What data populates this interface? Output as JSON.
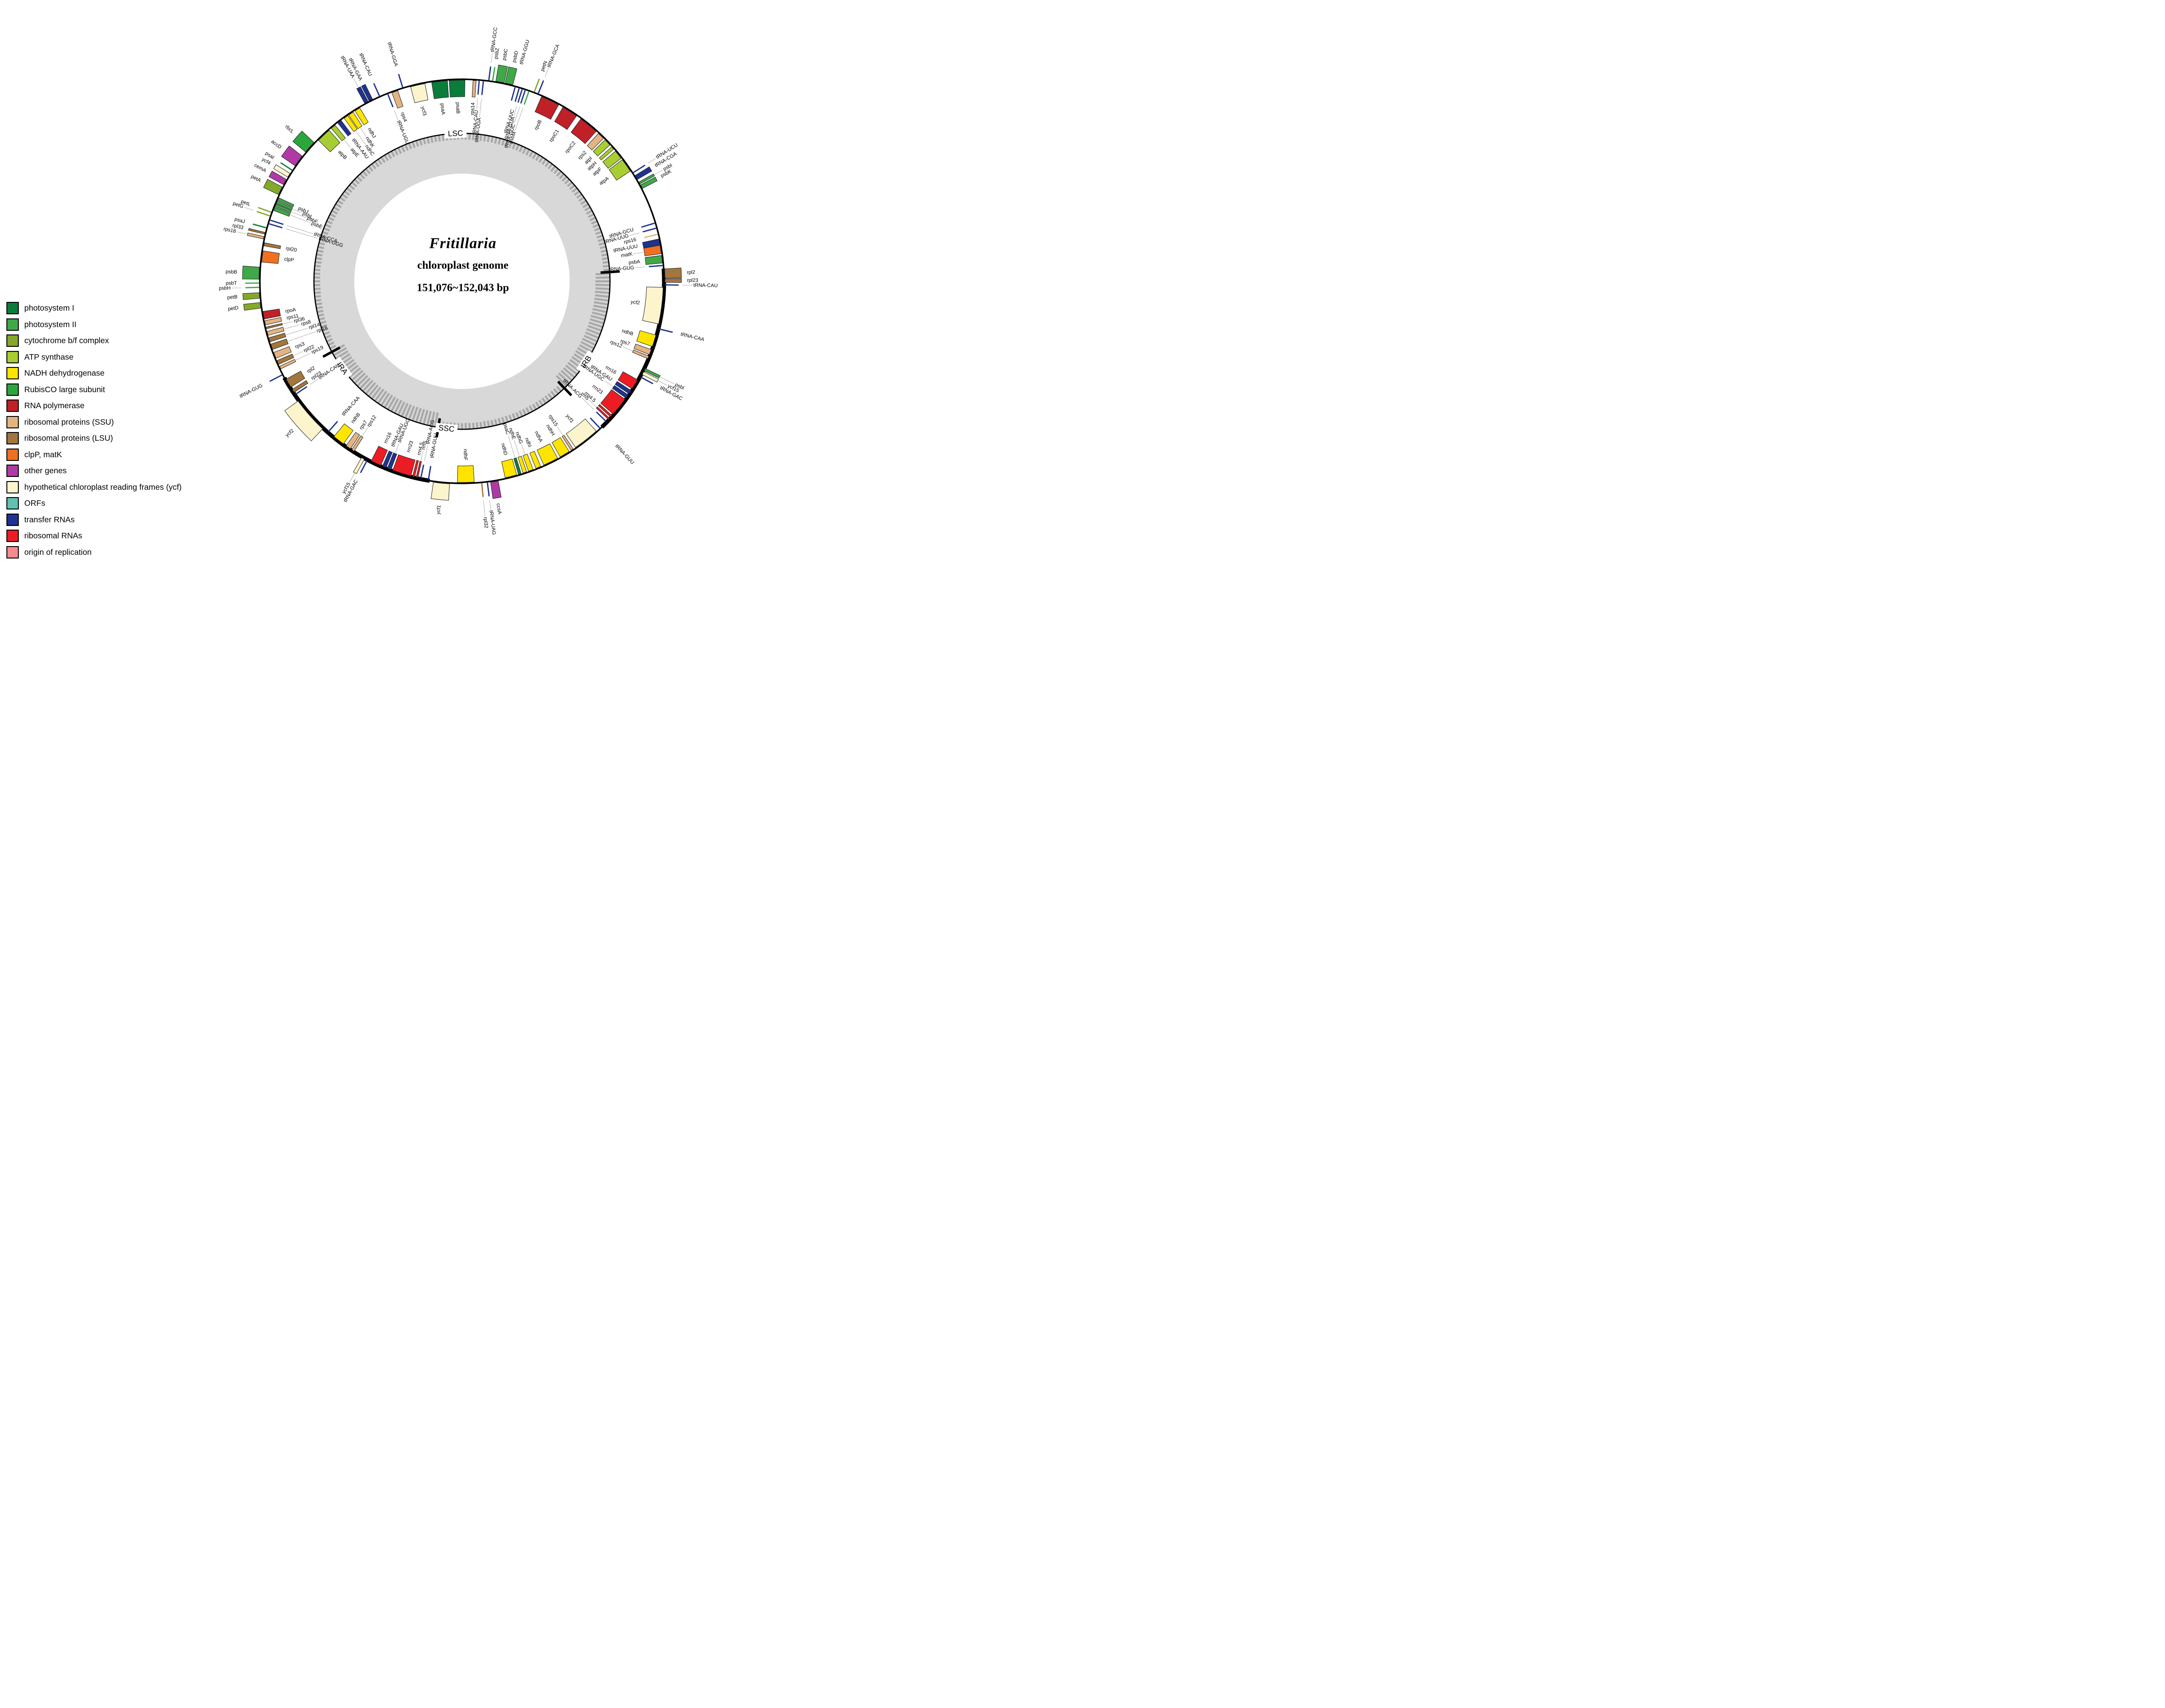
{
  "figure": {
    "type": "circular-genome-map",
    "title": "Fritillaria",
    "subtitle": "chloroplast genome",
    "size_label": "151,076~152,043 bp"
  },
  "colors": {
    "psi": "#0a7d3b",
    "psii": "#3fa947",
    "cyt": "#84a82a",
    "atp": "#a8cd32",
    "ndh": "#ffe400",
    "rbc": "#2ca53c",
    "rpo": "#c02127",
    "ssu": "#e3b482",
    "lsu": "#a3763e",
    "clp": "#f07022",
    "oth": "#af3aa5",
    "ycf": "#fbf4cd",
    "orf": "#63c1b0",
    "trn": "#1e3390",
    "rrn": "#ec1c24",
    "ori": "#f58b8d"
  },
  "legend": [
    {
      "key": "psi",
      "label": "photosystem I"
    },
    {
      "key": "psii",
      "label": "photosystem II"
    },
    {
      "key": "cyt",
      "label": "cytochrome b/f complex"
    },
    {
      "key": "atp",
      "label": "ATP synthase"
    },
    {
      "key": "ndh",
      "label": "NADH dehydrogenase"
    },
    {
      "key": "rbc",
      "label": "RubisCO large subunit"
    },
    {
      "key": "rpo",
      "label": "RNA polymerase"
    },
    {
      "key": "ssu",
      "label": "ribosomal proteins (SSU)"
    },
    {
      "key": "lsu",
      "label": "ribosomal proteins (LSU)"
    },
    {
      "key": "clp",
      "label": "clpP, matK"
    },
    {
      "key": "oth",
      "label": "other genes"
    },
    {
      "key": "ycf",
      "label": "hypothetical chloroplast reading frames (ycf)"
    },
    {
      "key": "orf",
      "label": "ORFs"
    },
    {
      "key": "trn",
      "label": "transfer RNAs"
    },
    {
      "key": "rrn",
      "label": "ribosomal RNAs"
    },
    {
      "key": "ori",
      "label": "origin of replication"
    }
  ],
  "regions": {
    "labels": [
      {
        "name": "LSC",
        "t": 357.5
      },
      {
        "name": "IRB",
        "t": 123
      },
      {
        "name": "SSC",
        "t": 186
      },
      {
        "name": "IRA",
        "t": 234
      }
    ],
    "junction_ticks": [
      86.4,
      136.2,
      189.2,
      241.5
    ],
    "ir_arcs": [
      [
        86.4,
        136.2
      ],
      [
        189.2,
        241.5
      ]
    ]
  },
  "genes": [
    {
      "n": "psaA",
      "t": 353.6,
      "w": 4.5,
      "s": "in",
      "c": "psi"
    },
    {
      "n": "psaB",
      "t": 358.6,
      "w": 4.5,
      "s": "in",
      "c": "psi"
    },
    {
      "n": "rps14",
      "t": 3.6,
      "w": 0.9,
      "s": "in",
      "c": "ssu",
      "lr": 0
    },
    {
      "n": "tRNA-CAU",
      "t": 4.9,
      "w": 0,
      "s": "in",
      "c": "trn",
      "lr": 16
    },
    {
      "n": "tRNA-UGA",
      "t": 6.1,
      "w": 0,
      "s": "in",
      "c": "trn",
      "lr": 32
    },
    {
      "n": "tRNA-GCC",
      "t": 7.6,
      "w": 0,
      "s": "out",
      "c": "trn",
      "lr": 14
    },
    {
      "n": "psbZ",
      "t": 8.7,
      "w": 0,
      "s": "out",
      "c": "psii",
      "lr": 0
    },
    {
      "n": "psbC",
      "t": 10.8,
      "w": 2.4,
      "s": "out",
      "c": "psii"
    },
    {
      "n": "psbD",
      "t": 13.4,
      "w": 2.2,
      "s": "out",
      "c": "psii"
    },
    {
      "n": "tRNA-GGU",
      "t": 15.3,
      "w": 0,
      "s": "in",
      "c": "trn",
      "l": "out"
    },
    {
      "n": "tRNA-UUC",
      "t": 16.5,
      "w": 0,
      "s": "in",
      "c": "trn",
      "lr": 0
    },
    {
      "n": "tRNA-GUA",
      "t": 17.4,
      "w": 0,
      "s": "in",
      "c": "trn",
      "lr": 15
    },
    {
      "n": "tRNA-GUC",
      "t": 18.3,
      "w": 0,
      "s": "in",
      "c": "trn",
      "lr": 30
    },
    {
      "n": "psbM",
      "t": 19.4,
      "w": 0,
      "s": "in",
      "c": "psii",
      "lr": 45
    },
    {
      "n": "petN",
      "t": 20.9,
      "w": 0,
      "s": "out",
      "c": "cyt",
      "lr": 0
    },
    {
      "n": "tRNA-GCA",
      "t": 22.1,
      "w": 0,
      "s": "out",
      "c": "trn",
      "lr": 13
    },
    {
      "n": "rpoB",
      "t": 26,
      "w": 5.4,
      "s": "in",
      "c": "rpo"
    },
    {
      "n": "rpoC1",
      "t": 32.4,
      "w": 4.6,
      "s": "in",
      "c": "rpo"
    },
    {
      "n": "rpoC2",
      "t": 39,
      "w": 5.6,
      "s": "in",
      "c": "rpo"
    },
    {
      "n": "rps2",
      "t": 43.7,
      "w": 2,
      "s": "in",
      "c": "ssu"
    },
    {
      "n": "atpI",
      "t": 46.3,
      "w": 2,
      "s": "in",
      "c": "atp"
    },
    {
      "n": "atpH",
      "t": 48.5,
      "w": 0.9,
      "s": "in",
      "c": "atp"
    },
    {
      "n": "atpF",
      "t": 51,
      "w": 2.6,
      "s": "in",
      "c": "atp"
    },
    {
      "n": "atpA",
      "t": 54.8,
      "w": 4,
      "s": "in",
      "c": "atp"
    },
    {
      "n": "tRNA-UCU",
      "t": 57.6,
      "w": 0,
      "s": "out",
      "c": "trn",
      "lr": 12
    },
    {
      "n": "tRNA-CGA",
      "t": 59.2,
      "w": 1.3,
      "s": "out",
      "c": "trn",
      "lr": 0
    },
    {
      "n": "psbI",
      "t": 61,
      "w": 0.6,
      "s": "out",
      "c": "psii",
      "lr": 12
    },
    {
      "n": "psbK",
      "t": 62.2,
      "w": 1.1,
      "s": "out",
      "c": "psii",
      "lr": 0
    },
    {
      "n": "tRNA-GCU",
      "t": 73.2,
      "w": 0,
      "s": "in",
      "c": "trn",
      "lr": 0
    },
    {
      "n": "tRNA-UUG",
      "t": 74.7,
      "w": 0,
      "s": "in",
      "c": "trn",
      "lr": 14
    },
    {
      "n": "rps16",
      "t": 76.5,
      "w": 0,
      "s": "in",
      "c": "ssu",
      "lr": 0
    },
    {
      "n": "tRNA-UUU",
      "t": 78.7,
      "w": 1.7,
      "s": "in",
      "c": "trn",
      "lr": 0
    },
    {
      "n": "matK",
      "t": 80.9,
      "w": 2.4,
      "s": "in",
      "c": "clp",
      "lr": 14
    },
    {
      "n": "psbA",
      "t": 83.7,
      "w": 2.2,
      "s": "in",
      "c": "psii",
      "lr": 0
    },
    {
      "n": "tRNA-GUG",
      "t": 85.5,
      "w": 0,
      "s": "in",
      "c": "trn",
      "lr": 14
    },
    {
      "n": "rpl2",
      "t": 87.8,
      "w": 2.6,
      "s": "out",
      "c": "lsu",
      "lr": 0
    },
    {
      "n": "rpl23",
      "t": 89.8,
      "w": 1,
      "s": "out",
      "c": "lsu",
      "lr": 0
    },
    {
      "n": "tRNA-CAU",
      "t": 91,
      "w": 0,
      "s": "out",
      "c": "trn",
      "lr": 14
    },
    {
      "n": "ycf2",
      "t": 97,
      "w": 10.5,
      "s": "in",
      "c": "ycf"
    },
    {
      "n": "tRNA-CAA",
      "t": 103.6,
      "w": 0,
      "s": "out",
      "c": "trn"
    },
    {
      "n": "ndhB",
      "t": 107.2,
      "w": 3.4,
      "s": "in",
      "c": "ndh"
    },
    {
      "n": "rps7",
      "t": 110.6,
      "w": 1.5,
      "s": "in",
      "c": "ssu",
      "lr": 0
    },
    {
      "n": "rps12",
      "t": 112.2,
      "w": 0.8,
      "s": "in",
      "c": "ssu",
      "lr": 14
    },
    {
      "n": "psbI",
      "t": 115.8,
      "w": 0.7,
      "s": "out",
      "c": "psii",
      "lr": 26
    },
    {
      "n": "ycf15",
      "t": 116.9,
      "w": 0.9,
      "s": "out",
      "c": "ycf",
      "lr": 13
    },
    {
      "n": "tRNA-GAC",
      "t": 118.2,
      "w": 0,
      "s": "out",
      "c": "trn",
      "lr": 0
    },
    {
      "n": "rrn16",
      "t": 120.8,
      "w": 3,
      "s": "in",
      "c": "rrn"
    },
    {
      "n": "tRNA-GAU",
      "t": 123.4,
      "w": 1.1,
      "s": "in",
      "c": "trn",
      "lr": 0
    },
    {
      "n": "tRNA-UGC",
      "t": 124.9,
      "w": 1.1,
      "s": "in",
      "c": "trn",
      "lr": 14
    },
    {
      "n": "rrn23",
      "t": 128.6,
      "w": 5.4,
      "s": "in",
      "c": "rrn"
    },
    {
      "n": "rrn4.5",
      "t": 132.1,
      "w": 0.6,
      "s": "in",
      "c": "rrn",
      "lr": 0
    },
    {
      "n": "rrn5",
      "t": 133.1,
      "w": 0.5,
      "s": "in",
      "c": "rrn",
      "lr": 14
    },
    {
      "n": "tRNA-ACG",
      "t": 134.2,
      "w": 0,
      "s": "in",
      "c": "trn",
      "lr": 28
    },
    {
      "n": "tRNA-GUU",
      "t": 136.8,
      "w": 0,
      "s": "in",
      "c": "trn",
      "l": "out"
    },
    {
      "n": "ycf1",
      "t": 141.9,
      "w": 7.5,
      "s": "in",
      "c": "ycf"
    },
    {
      "n": "rps15",
      "t": 146.8,
      "w": 0.7,
      "s": "in",
      "c": "ssu",
      "lr": 14
    },
    {
      "n": "ndhH",
      "t": 149.3,
      "w": 3,
      "s": "in",
      "c": "ndh",
      "lr": 0
    },
    {
      "n": "ndhA",
      "t": 153.8,
      "w": 4.4,
      "s": "in",
      "c": "ndh"
    },
    {
      "n": "ndhI",
      "t": 157.7,
      "w": 1.5,
      "s": "in",
      "c": "ndh",
      "lr": 0
    },
    {
      "n": "ndhG",
      "t": 160,
      "w": 1.4,
      "s": "in",
      "c": "ndh",
      "lr": 14
    },
    {
      "n": "ndhE",
      "t": 161.8,
      "w": 1.1,
      "s": "in",
      "c": "ndh",
      "lr": 28
    },
    {
      "n": "psaC",
      "t": 163.3,
      "w": 0.8,
      "s": "in",
      "c": "psi",
      "lr": 42
    },
    {
      "n": "ndhD",
      "t": 165.9,
      "w": 3.4,
      "s": "in",
      "c": "ndh",
      "lr": 0
    },
    {
      "n": "ccsA",
      "t": 170.8,
      "w": 2.2,
      "s": "out",
      "c": "oth",
      "lr": 0
    },
    {
      "n": "tRNA-UAG",
      "t": 172.8,
      "w": 0,
      "s": "out",
      "c": "trn",
      "lr": 13
    },
    {
      "n": "rpl32",
      "t": 174.4,
      "w": 0,
      "s": "out",
      "c": "lsu",
      "lr": 26
    },
    {
      "n": "ndhF",
      "t": 178.9,
      "w": 4.8,
      "s": "in",
      "c": "ndh"
    },
    {
      "n": "ycf1",
      "t": 185.8,
      "w": 4.6,
      "s": "out",
      "c": "ycf"
    },
    {
      "n": "tRNA-GUU",
      "t": 189.6,
      "w": 0,
      "s": "in",
      "c": "trn"
    },
    {
      "n": "tRNA-ACG",
      "t": 191.8,
      "w": 0,
      "s": "in",
      "c": "trn",
      "lr": 28
    },
    {
      "n": "rrn5",
      "t": 192.9,
      "w": 0.5,
      "s": "in",
      "c": "rrn",
      "lr": 14
    },
    {
      "n": "rrn4.5",
      "t": 193.9,
      "w": 0.6,
      "s": "in",
      "c": "rrn",
      "lr": 0
    },
    {
      "n": "rrn23",
      "t": 197.4,
      "w": 5.4,
      "s": "in",
      "c": "rrn"
    },
    {
      "n": "tRNA-UGC",
      "t": 201.2,
      "w": 1.1,
      "s": "in",
      "c": "trn",
      "lr": 14
    },
    {
      "n": "tRNA-GAU",
      "t": 202.7,
      "w": 1.1,
      "s": "in",
      "c": "trn",
      "lr": 0
    },
    {
      "n": "rrn16",
      "t": 205.3,
      "w": 3,
      "s": "in",
      "c": "rrn"
    },
    {
      "n": "tRNA-GAC",
      "t": 207.9,
      "w": 0,
      "s": "out",
      "c": "trn",
      "lr": 0
    },
    {
      "n": "ycf15",
      "t": 209.2,
      "w": 0.9,
      "s": "out",
      "c": "ycf",
      "lr": 13
    },
    {
      "n": "rps12",
      "t": 212.8,
      "w": 0.8,
      "s": "in",
      "c": "ssu",
      "lr": 14
    },
    {
      "n": "rps7",
      "t": 214.4,
      "w": 1.5,
      "s": "in",
      "c": "ssu",
      "lr": 0
    },
    {
      "n": "ndhB",
      "t": 217.8,
      "w": 3.4,
      "s": "in",
      "c": "ndh"
    },
    {
      "n": "tRNA-CAA",
      "t": 221.6,
      "w": 0,
      "s": "in",
      "c": "trn"
    },
    {
      "n": "ycf2",
      "t": 228.6,
      "w": 10.5,
      "s": "out",
      "c": "ycf"
    },
    {
      "n": "tRNA-CAU",
      "t": 235.8,
      "w": 0,
      "s": "in",
      "c": "trn",
      "lr": 14
    },
    {
      "n": "rpl23",
      "t": 237,
      "w": 1,
      "s": "in",
      "c": "lsu",
      "lr": 0
    },
    {
      "n": "rpl2",
      "t": 239.6,
      "w": 2.6,
      "s": "in",
      "c": "lsu"
    },
    {
      "n": "tRNA-GUG",
      "t": 242.5,
      "w": 0,
      "s": "out",
      "c": "trn"
    },
    {
      "n": "rps19",
      "t": 244.6,
      "w": 0.8,
      "s": "in",
      "c": "ssu",
      "lr": 28
    },
    {
      "n": "rpl22",
      "t": 246.2,
      "w": 1.2,
      "s": "in",
      "c": "lsu",
      "lr": 14
    },
    {
      "n": "rps3",
      "t": 248.4,
      "w": 1.8,
      "s": "in",
      "c": "ssu",
      "lr": 0
    },
    {
      "n": "rpl16",
      "t": 251,
      "w": 1.6,
      "s": "in",
      "c": "lsu",
      "lr": 56
    },
    {
      "n": "rpl14",
      "t": 253.1,
      "w": 1.2,
      "s": "in",
      "c": "lsu",
      "lr": 42
    },
    {
      "n": "rps8",
      "t": 255,
      "w": 1.2,
      "s": "in",
      "c": "ssu",
      "lr": 28
    },
    {
      "n": "rpl36",
      "t": 256.6,
      "w": 0.5,
      "s": "in",
      "c": "lsu",
      "lr": 14
    },
    {
      "n": "rps11",
      "t": 258.1,
      "w": 1.2,
      "s": "in",
      "c": "ssu",
      "lr": 0
    },
    {
      "n": "rpoA",
      "t": 260.3,
      "w": 2.2,
      "s": "in",
      "c": "rpo"
    },
    {
      "n": "petD",
      "t": 263.2,
      "w": 1.6,
      "s": "out",
      "c": "cyt"
    },
    {
      "n": "petB",
      "t": 266,
      "w": 1.6,
      "s": "out",
      "c": "cyt"
    },
    {
      "n": "psbH",
      "t": 268.3,
      "w": 0,
      "s": "out",
      "c": "psii",
      "lr": 14
    },
    {
      "n": "psbT",
      "t": 269.5,
      "w": 0,
      "s": "out",
      "c": "psii",
      "lr": 0
    },
    {
      "n": "psbB",
      "t": 272.3,
      "w": 3.4,
      "s": "out",
      "c": "psii"
    },
    {
      "n": "clpP",
      "t": 277.1,
      "w": 3.2,
      "s": "in",
      "c": "clp"
    },
    {
      "n": "rpl20",
      "t": 280.6,
      "w": 0.9,
      "s": "in",
      "c": "lsu"
    },
    {
      "n": "rps18",
      "t": 282.4,
      "w": 0.7,
      "s": "out",
      "c": "ssu",
      "lr": 14
    },
    {
      "n": "rpl33",
      "t": 283.7,
      "w": 0.5,
      "s": "out",
      "c": "lsu",
      "lr": 0
    },
    {
      "n": "psaJ",
      "t": 285.3,
      "w": 0,
      "s": "out",
      "c": "psi",
      "lr": 0
    },
    {
      "n": "tRNA-UGG",
      "t": 286.6,
      "w": 0,
      "s": "in",
      "c": "trn",
      "lr": 65
    },
    {
      "n": "tRNA-CCA",
      "t": 287.7,
      "w": 0,
      "s": "in",
      "c": "trn",
      "lr": 52
    },
    {
      "n": "petG",
      "t": 288.8,
      "w": 0,
      "s": "out",
      "c": "cyt",
      "lr": 13
    },
    {
      "n": "petL",
      "t": 289.9,
      "w": 0,
      "s": "out",
      "c": "cyt",
      "lr": 0
    },
    {
      "n": "psbE",
      "t": 291.1,
      "w": 1,
      "s": "in",
      "c": "psii",
      "lr": 39
    },
    {
      "n": "psbF",
      "t": 292.2,
      "w": 0.7,
      "s": "in",
      "c": "psii",
      "lr": 26
    },
    {
      "n": "psbL",
      "t": 293.1,
      "w": 0.7,
      "s": "in",
      "c": "psii",
      "lr": 13
    },
    {
      "n": "psbJ",
      "t": 294.1,
      "w": 0.8,
      "s": "in",
      "c": "psii",
      "lr": 0
    },
    {
      "n": "petA",
      "t": 296.5,
      "w": 2.4,
      "s": "out",
      "c": "cyt"
    },
    {
      "n": "cemA",
      "t": 299.3,
      "w": 1.7,
      "s": "out",
      "c": "oth"
    },
    {
      "n": "ycf4",
      "t": 301.5,
      "w": 1.2,
      "s": "out",
      "c": "ycf"
    },
    {
      "n": "psaI",
      "t": 303.2,
      "w": 0,
      "s": "out",
      "c": "psi"
    },
    {
      "n": "accD",
      "t": 306.4,
      "w": 3.4,
      "s": "out",
      "c": "oth"
    },
    {
      "n": "rbcL",
      "t": 311.4,
      "w": 3.6,
      "s": "out",
      "c": "rbc"
    },
    {
      "n": "atpB",
      "t": 316.6,
      "w": 4.2,
      "s": "in",
      "c": "atp",
      "lr": 0
    },
    {
      "n": "atpE",
      "t": 320.2,
      "w": 1.4,
      "s": "in",
      "c": "atp",
      "lr": 14
    },
    {
      "n": "tRNA-AAU",
      "t": 322.5,
      "w": 1.2,
      "s": "in",
      "c": "trn",
      "lr": 0
    },
    {
      "n": "ndhC",
      "t": 324.8,
      "w": 1.3,
      "s": "in",
      "c": "ndh",
      "lr": 28
    },
    {
      "n": "ndhK",
      "t": 326.5,
      "w": 1.5,
      "s": "in",
      "c": "ndh",
      "lr": 14
    },
    {
      "n": "ndhJ",
      "t": 328.7,
      "w": 1.6,
      "s": "in",
      "c": "ndh",
      "lr": 0
    },
    {
      "n": "tRNA-UAA",
      "t": 331.9,
      "w": 1.1,
      "s": "out",
      "c": "trn",
      "lr": 13
    },
    {
      "n": "tRNA-GAA",
      "t": 333.3,
      "w": 1.1,
      "s": "out",
      "c": "trn",
      "lr": 0
    },
    {
      "n": "tRNA-CAU",
      "t": 336,
      "w": 0,
      "s": "out",
      "c": "trn"
    },
    {
      "n": "tRNA-UGU",
      "t": 338.4,
      "w": 0,
      "s": "in",
      "c": "trn",
      "lr": 14
    },
    {
      "n": "rps4",
      "t": 340.5,
      "w": 1.8,
      "s": "in",
      "c": "ssu",
      "lr": 0
    },
    {
      "n": "tRNA-GGA",
      "t": 343,
      "w": 0,
      "s": "out",
      "c": "trn"
    },
    {
      "n": "ycf3",
      "t": 347.3,
      "w": 4.2,
      "s": "in",
      "c": "ycf"
    }
  ]
}
